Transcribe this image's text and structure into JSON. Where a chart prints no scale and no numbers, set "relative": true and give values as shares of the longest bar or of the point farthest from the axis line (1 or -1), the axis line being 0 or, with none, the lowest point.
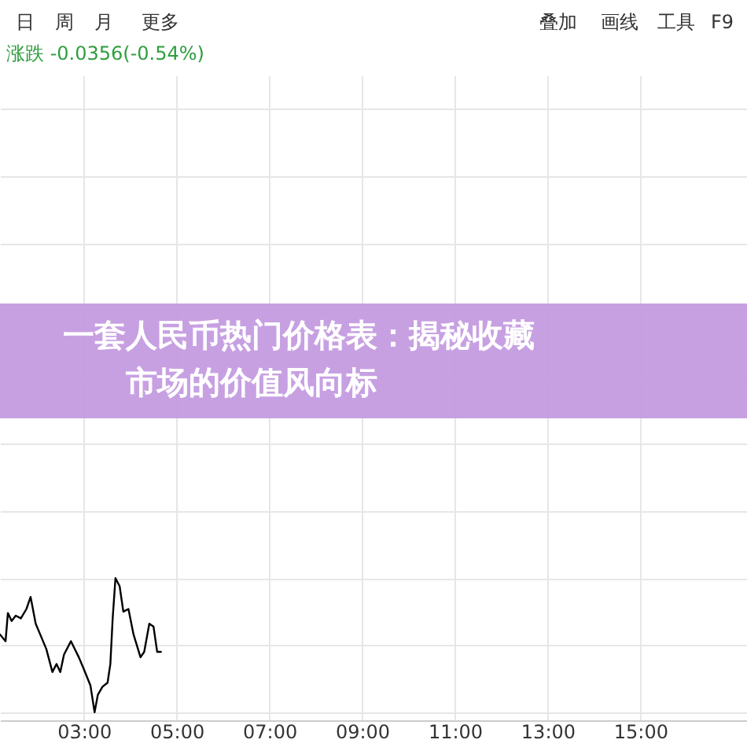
{
  "chart_data": {
    "type": "line",
    "title": "一套人民币热门价格表：揭秘收藏市场的价值风向标",
    "x": [
      1.19,
      1.31,
      1.36,
      1.44,
      1.53,
      1.64,
      1.76,
      1.85,
      1.96,
      2.07,
      2.19,
      2.32,
      2.41,
      2.49,
      2.57,
      2.72,
      2.89,
      3.0,
      3.14,
      3.23,
      3.3,
      3.4,
      3.51,
      3.57,
      3.62,
      3.68,
      3.77,
      3.85,
      3.96,
      4.07,
      4.22,
      4.3,
      4.41,
      4.5,
      4.58,
      4.66
    ],
    "series": [
      {
        "color": "#000000",
        "values": [
          0.58,
          0.53,
          0.74,
          0.68,
          0.72,
          0.7,
          0.77,
          0.86,
          0.66,
          0.57,
          0.47,
          0.3,
          0.36,
          0.3,
          0.43,
          0.53,
          0.41,
          0.32,
          0.2,
          0,
          0.13,
          0.19,
          0.22,
          0.36,
          0.7,
          1.0,
          0.94,
          0.75,
          0.77,
          0.58,
          0.41,
          0.45,
          0.66,
          0.64,
          0.45,
          0.45
        ]
      }
    ],
    "relative": true,
    "xlim": [
      1.19,
      17.3
    ],
    "xticks": [
      {
        "value": 3,
        "label": "03:00"
      },
      {
        "value": 5,
        "label": "05:00"
      },
      {
        "value": 7,
        "label": "07:00"
      },
      {
        "value": 9,
        "label": "09:00"
      },
      {
        "value": 11,
        "label": "11:00"
      },
      {
        "value": 13,
        "label": "13:00"
      },
      {
        "value": 15,
        "label": "15:00"
      }
    ],
    "grid": true,
    "annotations": [
      "日",
      "周",
      "月",
      "更多",
      "叠加",
      "画线",
      "工具",
      "F9",
      "涨跌 -0.0356(-0.54%)"
    ]
  }
}
